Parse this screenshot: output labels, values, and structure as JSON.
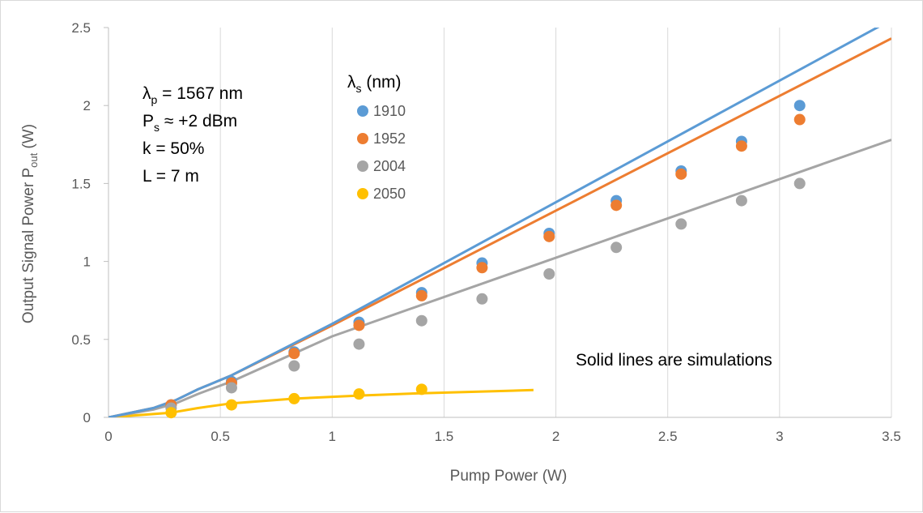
{
  "chart_data": {
    "type": "scatter",
    "xlabel": "Pump Power (W)",
    "ylabel_main": "Output Signal Power P",
    "ylabel_sub": "out",
    "ylabel_unit": "  (W)",
    "xlim": [
      0,
      3.5
    ],
    "ylim": [
      0,
      2.5
    ],
    "x_ticks": [
      "0",
      "0.5",
      "1",
      "1.5",
      "2",
      "2.5",
      "3",
      "3.5"
    ],
    "y_ticks": [
      "0",
      "0.5",
      "1",
      "1.5",
      "2",
      "2.5"
    ],
    "grid": "vertical",
    "legend_title_main": "λ",
    "legend_title_sub": "s",
    "legend_title_rest": " (nm)",
    "legend_placement": "top-left-center",
    "parameters": [
      {
        "main": "λ",
        "sub": "p",
        "rest": " = 1567 nm"
      },
      {
        "main": "P",
        "sub": "s",
        "rest": " ≈ +2 dBm"
      },
      {
        "main": "k = 50%",
        "sub": "",
        "rest": ""
      },
      {
        "main": "L = 7 m",
        "sub": "",
        "rest": ""
      }
    ],
    "annotation": "Solid lines are simulations",
    "series": [
      {
        "name": "1910",
        "color": "#5b9bd5",
        "points": [
          [
            0.28,
            0.08
          ],
          [
            0.55,
            0.23
          ],
          [
            0.83,
            0.42
          ],
          [
            1.12,
            0.61
          ],
          [
            1.4,
            0.8
          ],
          [
            1.67,
            0.99
          ],
          [
            1.97,
            1.18
          ],
          [
            2.27,
            1.39
          ],
          [
            2.56,
            1.58
          ],
          [
            2.83,
            1.77
          ],
          [
            3.09,
            2.0
          ]
        ],
        "simulation": [
          [
            0,
            0
          ],
          [
            0.2,
            0.06
          ],
          [
            0.3,
            0.11
          ],
          [
            0.4,
            0.18
          ],
          [
            0.55,
            0.27
          ],
          [
            1.0,
            0.6
          ],
          [
            3.5,
            2.55
          ]
        ]
      },
      {
        "name": "1952",
        "color": "#ed7d31",
        "points": [
          [
            0.28,
            0.08
          ],
          [
            0.55,
            0.22
          ],
          [
            0.83,
            0.41
          ],
          [
            1.12,
            0.59
          ],
          [
            1.4,
            0.78
          ],
          [
            1.67,
            0.96
          ],
          [
            1.97,
            1.16
          ],
          [
            2.27,
            1.36
          ],
          [
            2.56,
            1.56
          ],
          [
            2.83,
            1.74
          ],
          [
            3.09,
            1.91
          ]
        ],
        "simulation": [
          [
            0,
            0
          ],
          [
            0.2,
            0.06
          ],
          [
            0.3,
            0.11
          ],
          [
            0.4,
            0.18
          ],
          [
            0.55,
            0.27
          ],
          [
            1.0,
            0.59
          ],
          [
            3.5,
            2.43
          ]
        ]
      },
      {
        "name": "2004",
        "color": "#a5a5a5",
        "points": [
          [
            0.28,
            0.06
          ],
          [
            0.55,
            0.19
          ],
          [
            0.83,
            0.33
          ],
          [
            1.12,
            0.47
          ],
          [
            1.4,
            0.62
          ],
          [
            1.67,
            0.76
          ],
          [
            1.97,
            0.92
          ],
          [
            2.27,
            1.09
          ],
          [
            2.56,
            1.24
          ],
          [
            2.83,
            1.39
          ],
          [
            3.09,
            1.5
          ]
        ],
        "simulation": [
          [
            0,
            0
          ],
          [
            0.2,
            0.05
          ],
          [
            0.3,
            0.09
          ],
          [
            0.4,
            0.15
          ],
          [
            0.55,
            0.23
          ],
          [
            1.0,
            0.52
          ],
          [
            3.5,
            1.78
          ]
        ]
      },
      {
        "name": "2050",
        "color": "#ffc000",
        "points": [
          [
            0.28,
            0.03
          ],
          [
            0.55,
            0.08
          ],
          [
            0.83,
            0.12
          ],
          [
            1.12,
            0.15
          ],
          [
            1.4,
            0.18
          ]
        ],
        "simulation": [
          [
            0,
            0
          ],
          [
            0.28,
            0.03
          ],
          [
            0.4,
            0.06
          ],
          [
            0.55,
            0.09
          ],
          [
            0.83,
            0.12
          ],
          [
            1.12,
            0.14
          ],
          [
            1.4,
            0.155
          ],
          [
            1.9,
            0.175
          ]
        ]
      }
    ]
  }
}
